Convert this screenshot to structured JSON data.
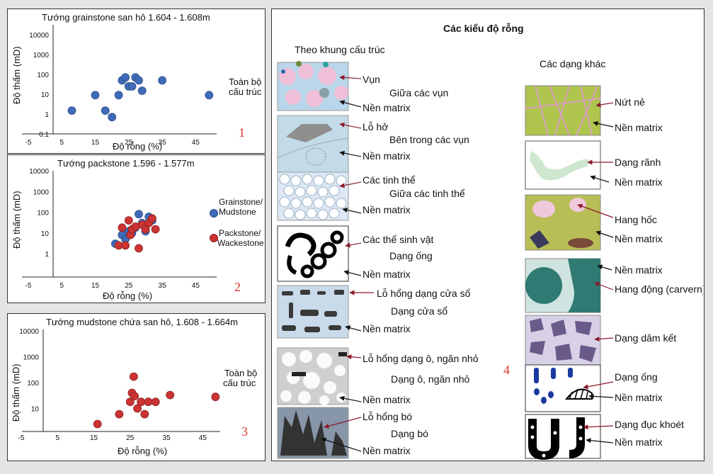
{
  "colors": {
    "blue": "#3f6bb8",
    "red": "#cc3333",
    "panel_num": "#d6372d"
  },
  "chart_data": [
    {
      "type": "scatter",
      "title": "Tướng grainstone san hô 1.604 - 1.608m",
      "xlabel": "Độ rỗng (%)",
      "ylabel": "Độ thấm (mD)",
      "xlim": [
        -5,
        50
      ],
      "ylim": [
        0.1,
        10000
      ],
      "yscale": "log",
      "x_ticks": [
        "-5",
        "5",
        "15",
        "25",
        "35",
        "45"
      ],
      "y_ticks": [
        "10000",
        "1000",
        "100",
        "10",
        "1",
        "0.1"
      ],
      "panel_number": "1",
      "legend_text": [
        "Toàn bộ",
        "cấu trúc"
      ],
      "series": [
        {
          "color": "blue",
          "x": [
            8,
            15,
            18,
            20,
            22,
            23,
            24,
            25,
            26,
            27,
            28,
            29,
            35,
            49
          ],
          "y": [
            1.5,
            9,
            1.5,
            0.7,
            9,
            50,
            70,
            25,
            25,
            70,
            50,
            15,
            50,
            9
          ]
        }
      ]
    },
    {
      "type": "scatter",
      "title": "Tướng packstone 1.596 - 1.577m",
      "xlabel": "Độ rỗng (%)",
      "ylabel": "Độ thấm (mD)",
      "xlim": [
        -5,
        50
      ],
      "ylim": [
        1,
        10000
      ],
      "yscale": "log",
      "x_ticks": [
        "-5",
        "5",
        "15",
        "25",
        "35",
        "45"
      ],
      "y_ticks": [
        "10000",
        "1000",
        "100",
        "10",
        "1"
      ],
      "panel_number": "2",
      "legend": [
        {
          "lines": [
            "Grainstone/",
            "Mudstone"
          ],
          "color": "blue"
        },
        {
          "lines": [
            "Packstone/",
            "Wackestone"
          ],
          "color": "red"
        }
      ],
      "series": [
        {
          "name": "Grainstone/Mudstone",
          "color": "blue",
          "x": [
            21,
            23,
            24,
            25,
            26,
            27,
            28,
            29,
            30,
            31,
            32
          ],
          "y": [
            3,
            8,
            5,
            12,
            10,
            18,
            80,
            30,
            12,
            60,
            40
          ]
        },
        {
          "name": "Packstone/Wackestone",
          "color": "red",
          "x": [
            22,
            23,
            24,
            25,
            25.5,
            26,
            27,
            28,
            29,
            30,
            31,
            32,
            33
          ],
          "y": [
            2.5,
            18,
            2.5,
            40,
            8,
            15,
            20,
            1.8,
            25,
            15,
            30,
            50,
            15
          ]
        }
      ]
    },
    {
      "type": "scatter",
      "title": "Tướng mudstone chứa san hô, 1.608 - 1.664m",
      "xlabel": "Độ rỗng (%)",
      "ylabel": "Độ thấm (mD)",
      "xlim": [
        -5,
        50
      ],
      "ylim": [
        1,
        10000
      ],
      "yscale": "log",
      "x_ticks": [
        "-5",
        "5",
        "15",
        "25",
        "35",
        "45"
      ],
      "y_ticks": [
        "10000",
        "1000",
        "100",
        "10"
      ],
      "panel_number": "3",
      "legend_text": [
        "Toàn bộ",
        "cấu trúc"
      ],
      "series": [
        {
          "color": "red",
          "x": [
            16,
            22,
            25,
            25.5,
            26,
            26.2,
            27,
            28,
            29,
            30,
            32,
            36,
            48.5
          ],
          "y": [
            2.5,
            6,
            18,
            40,
            170,
            30,
            10,
            18,
            6,
            18,
            18,
            33,
            28
          ]
        }
      ]
    }
  ],
  "right_panel": {
    "title": "Các kiểu độ rỗng",
    "col1_title": "Theo khung cấu trúc",
    "col2_title": "Các dạng khác",
    "panel_number": "4",
    "left_items": [
      {
        "pore": "Vụn",
        "type": "Giữa các vụn",
        "matrix": "Nền matrix"
      },
      {
        "pore": "Lỗ hở",
        "type": "Bên trong các vụn",
        "matrix": "Nền matrix"
      },
      {
        "pore": "Các tinh thể",
        "type": "Giữa các tinh thể",
        "matrix": "Nền matrix"
      },
      {
        "pore": "Các thể sinh vật",
        "type": "Dạng ống",
        "matrix": "Nền matrix"
      },
      {
        "pore": "Lỗ hổng dạng cửa sổ",
        "type": "Dạng cửa sổ",
        "matrix": "Nền matrix"
      },
      {
        "pore": "Lỗ hổng dạng ô, ngăn nhỏ",
        "type": "Dạng ô, ngăn nhỏ",
        "matrix": "Nền matrix"
      },
      {
        "pore": "Lỗ hổng bó",
        "type": "Dạng bó",
        "matrix": "Nền matrix"
      }
    ],
    "right_items": [
      {
        "type": "Nứt nẻ",
        "matrix": "Nền matrix"
      },
      {
        "type": "Dạng rãnh",
        "matrix": "Nền matrix"
      },
      {
        "type": "Hang hốc",
        "matrix": "Nền matrix"
      },
      {
        "type": "Hang động (carvern)",
        "matrix": "Nền matrix"
      },
      {
        "type": "Dạng dăm kết"
      },
      {
        "type": "Dạng ống",
        "matrix": "Nền matrix"
      },
      {
        "type": "Dạng đục khoét",
        "matrix": "Nền matrix"
      }
    ]
  }
}
